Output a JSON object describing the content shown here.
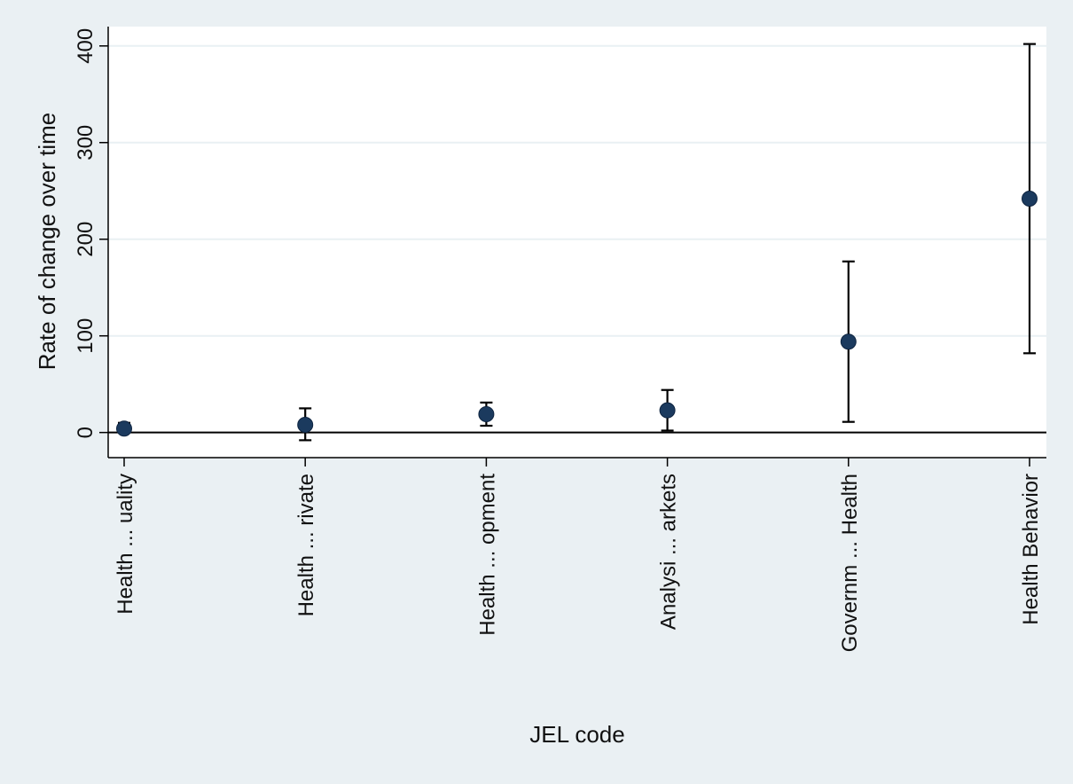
{
  "chart_data": {
    "type": "scatter",
    "title": "",
    "xlabel": "JEL code",
    "ylabel": "Rate of change over time",
    "categories": [
      "Health  ... uality",
      "Health  ... rivate",
      "Health  ... opment",
      "Analysi ... arkets",
      "Governm ... Health",
      "Health Behavior"
    ],
    "points": [
      {
        "value": 4,
        "ci_low": 1,
        "ci_high": 10
      },
      {
        "value": 8,
        "ci_low": -8,
        "ci_high": 25
      },
      {
        "value": 19,
        "ci_low": 7,
        "ci_high": 31
      },
      {
        "value": 23,
        "ci_low": 2,
        "ci_high": 44
      },
      {
        "value": 94,
        "ci_low": 11,
        "ci_high": 177
      },
      {
        "value": 242,
        "ci_low": 82,
        "ci_high": 402
      }
    ],
    "yticks": [
      0,
      100,
      200,
      300,
      400
    ],
    "ylim": [
      -26,
      420
    ],
    "grid": true,
    "zero_line": true,
    "colors": {
      "background": "#eaf0f3",
      "plot_background": "#ffffff",
      "gridline": "#e9f0f3",
      "marker": "#1b3a5e",
      "marker_edge": "#0e2440",
      "errorbar": "#000000"
    }
  }
}
